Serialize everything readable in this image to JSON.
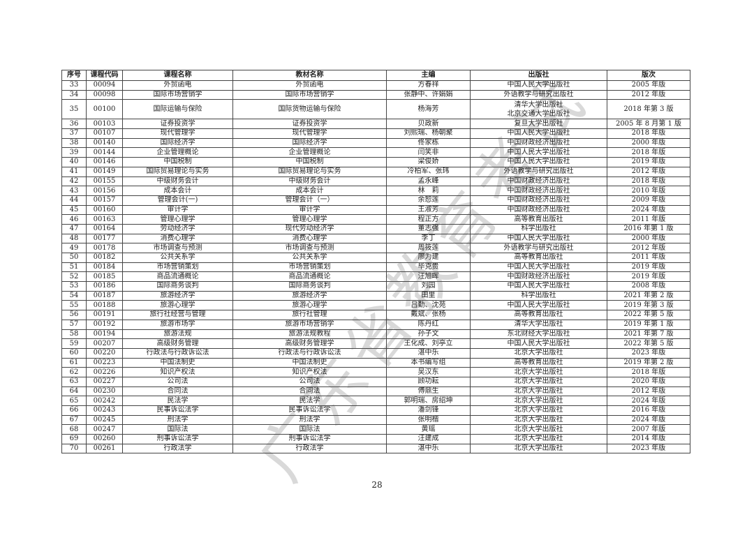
{
  "table": {
    "headers": [
      "序号",
      "课程代码",
      "课程名称",
      "教材名称",
      "主编",
      "出版社",
      "版次"
    ],
    "rows": [
      [
        "33",
        "00094",
        "外贸函电",
        "外贸函电",
        "方春祥",
        "中国人民大学出版社",
        "2005 年版"
      ],
      [
        "34",
        "00098",
        "国际市场营销学",
        "国际市场营销学",
        "张静中、许娟娟",
        "外语教学与研究出版社",
        "2012 年版"
      ],
      [
        "35",
        "00100",
        "国际运输与保险",
        "国际货物运输与保险",
        "杨海芳",
        "清华大学出版社\n北京交通大学出版社",
        "2018 年第 3 版"
      ],
      [
        "36",
        "00103",
        "证券投资学",
        "证券投资学",
        "贝政新",
        "复旦大学出版社",
        "2005 年 8 月第 1 版"
      ],
      [
        "37",
        "00107",
        "现代管理学",
        "现代管理学",
        "刘熙瑞、杨朝聚",
        "中国人民大学出版社",
        "2018 年版"
      ],
      [
        "38",
        "00140",
        "国际经济学",
        "国际经济学",
        "佟家栋",
        "中国财政经济出版社",
        "2000 年版"
      ],
      [
        "39",
        "00144",
        "企业管理概论",
        "企业管理概论",
        "闫笑非",
        "中国人民大学出版社",
        "2018 年版"
      ],
      [
        "40",
        "00146",
        "中国税制",
        "中国税制",
        "梁俊娇",
        "中国人民大学出版社",
        "2019 年版"
      ],
      [
        "41",
        "00149",
        "国际贸易理论与实务",
        "国际贸易理论与实务",
        "冷柏军、张玮",
        "外语教学与研究出版社",
        "2012 年版"
      ],
      [
        "42",
        "00155",
        "中级财务会计",
        "中级财务会计",
        "孟永峰",
        "中国财政经济出版社",
        "2018 年版"
      ],
      [
        "43",
        "00156",
        "成本会计",
        "成本会计",
        "林　莉",
        "中国财政经济出版社",
        "2010 年版"
      ],
      [
        "44",
        "00157",
        "管理会计(一)",
        "管理会计（一）",
        "余恕莲",
        "中国财政经济出版社",
        "2009 年版"
      ],
      [
        "45",
        "00160",
        "审计学",
        "审计学",
        "王淑芳",
        "中国财政经济出版社",
        "2024 年版"
      ],
      [
        "46",
        "00163",
        "管理心理学",
        "管理心理学",
        "程正方",
        "高等教育出版社",
        "2011 年版"
      ],
      [
        "47",
        "00164",
        "劳动经济学",
        "现代劳动经济学",
        "董志强",
        "科学出版社",
        "2016 年第 1 版"
      ],
      [
        "48",
        "00177",
        "消费心理学",
        "消费心理学",
        "李丁",
        "中国人民大学出版社",
        "2000 年版"
      ],
      [
        "49",
        "00178",
        "市场调查与预测",
        "市场调查与预测",
        "周筱莲",
        "外语教学与研究出版社",
        "2012 年版"
      ],
      [
        "50",
        "00182",
        "公共关系学",
        "公共关系学",
        "廖为建",
        "高等教育出版社",
        "2011 年版"
      ],
      [
        "51",
        "00184",
        "市场营销策划",
        "市场营销策划",
        "毕克贵",
        "中国人民大学出版社",
        "2019 年版"
      ],
      [
        "52",
        "00185",
        "商品流通概论",
        "商品流通概论",
        "汪旭晖",
        "中国财政经济出版社",
        "2019 年版"
      ],
      [
        "53",
        "00186",
        "国际商务谈判",
        "国际商务谈判",
        "刘园",
        "中国人民大学出版社",
        "2008 年版"
      ],
      [
        "54",
        "00187",
        "旅游经济学",
        "旅游经济学",
        "田里",
        "科学出版社",
        "2021 年第 2 版"
      ],
      [
        "55",
        "00188",
        "旅游心理学",
        "旅游心理学",
        "吕勤、沈苑",
        "中国人民大学出版社",
        "2019 年第 3 版"
      ],
      [
        "56",
        "00191",
        "旅行社经营与管理",
        "旅行社管理",
        "戴斌、张杨",
        "高等教育出版社",
        "2022 年第 5 版"
      ],
      [
        "57",
        "00192",
        "旅游市场学",
        "旅游市场营销学",
        "陈丹红",
        "清华大学出版社",
        "2019 年第 1 版"
      ],
      [
        "58",
        "00194",
        "旅游法规",
        "旅游法规教程",
        "孙子文",
        "东北财经大学出版社",
        "2021 年第 7 版"
      ],
      [
        "59",
        "00207",
        "高级财务管理",
        "高级财务管理学",
        "王化成、刘亭立",
        "中国人民大学出版社",
        "2022 年第 5 版"
      ],
      [
        "60",
        "00220",
        "行政法与行政诉讼法",
        "行政法与行政诉讼法",
        "湛中乐",
        "北京大学出版社",
        "2023 年版"
      ],
      [
        "61",
        "00223",
        "中国法制史",
        "中国法制史",
        "本书编写组",
        "高等教育出版社",
        "2019 年第 2 版"
      ],
      [
        "62",
        "00226",
        "知识产权法",
        "知识产权法",
        "吴汉东",
        "北京大学出版社",
        "2018 年版"
      ],
      [
        "63",
        "00227",
        "公司法",
        "公司法",
        "顾功耘",
        "北京大学出版社",
        "2020 年版"
      ],
      [
        "64",
        "00230",
        "合同法",
        "合同法",
        "傅鼎生",
        "北京大学出版社",
        "2012 年版"
      ],
      [
        "65",
        "00242",
        "民法学",
        "民法学",
        "郭明瑞、房绍坤",
        "北京大学出版社",
        "2024 年版"
      ],
      [
        "66",
        "00243",
        "民事诉讼法学",
        "民事诉讼法学",
        "潘剑锋",
        "北京大学出版社",
        "2016 年版"
      ],
      [
        "67",
        "00245",
        "刑法学",
        "刑法学",
        "张明楷",
        "北京大学出版社",
        "2024 年版"
      ],
      [
        "68",
        "00247",
        "国际法",
        "国际法",
        "黄瑶",
        "北京大学出版社",
        "2007 年版"
      ],
      [
        "69",
        "00260",
        "刑事诉讼法学",
        "刑事诉讼法学",
        "汪建成",
        "北京大学出版社",
        "2014 年版"
      ],
      [
        "70",
        "00261",
        "行政法学",
        "行政法学",
        "湛中乐",
        "北京大学出版社",
        "2023 年版"
      ]
    ]
  },
  "page_number": "28",
  "watermark": "广东省教育考试"
}
